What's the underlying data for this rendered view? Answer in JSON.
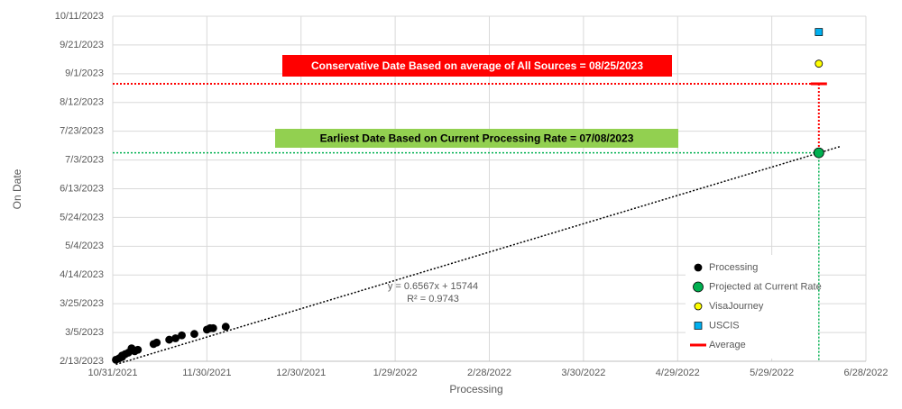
{
  "chart_data": {
    "type": "scatter",
    "x_label": "Processing",
    "y_label": "On Date",
    "xlim": [
      44500,
      44740
    ],
    "xticks": [
      {
        "value": 44500,
        "label": "10/31/2021"
      },
      {
        "value": 44530,
        "label": "11/30/2021"
      },
      {
        "value": 44560,
        "label": "12/30/2021"
      },
      {
        "value": 44590,
        "label": "1/29/2022"
      },
      {
        "value": 44620,
        "label": "2/28/2022"
      },
      {
        "value": 44650,
        "label": "3/30/2022"
      },
      {
        "value": 44680,
        "label": "4/29/2022"
      },
      {
        "value": 44710,
        "label": "5/29/2022"
      },
      {
        "value": 44740,
        "label": "6/28/2022"
      }
    ],
    "ylim": [
      44970,
      45210
    ],
    "yticks": [
      {
        "value": 44970,
        "label": "2/13/2023"
      },
      {
        "value": 44990,
        "label": "3/5/2023"
      },
      {
        "value": 45010,
        "label": "3/25/2023"
      },
      {
        "value": 45030,
        "label": "4/14/2023"
      },
      {
        "value": 45050,
        "label": "5/4/2023"
      },
      {
        "value": 45070,
        "label": "5/24/2023"
      },
      {
        "value": 45090,
        "label": "6/13/2023"
      },
      {
        "value": 45110,
        "label": "7/3/2023"
      },
      {
        "value": 45130,
        "label": "7/23/2023"
      },
      {
        "value": 45150,
        "label": "8/12/2023"
      },
      {
        "value": 45170,
        "label": "9/1/2023"
      },
      {
        "value": 45190,
        "label": "9/21/2023"
      },
      {
        "value": 45210,
        "label": "10/11/2023"
      }
    ],
    "grid": true,
    "series": [
      {
        "name": "Processing",
        "color": "#000000",
        "marker": "circle",
        "x": [
          44501,
          44502,
          44503,
          44503,
          44504,
          44505,
          44506,
          44507,
          44508,
          44513,
          44514,
          44518,
          44520,
          44522,
          44526,
          44530,
          44531,
          44532,
          44536
        ],
        "values": [
          44971,
          44972,
          44973,
          44974,
          44975,
          44976,
          44979,
          44977,
          44978,
          44982,
          44983,
          44985,
          44986,
          44988,
          44989,
          44992,
          44993,
          44993,
          44994
        ]
      },
      {
        "name": "Projected at Current Rate",
        "color": "#00b050",
        "marker": "big-circle",
        "x": [
          44725
        ],
        "values": [
          45115
        ]
      },
      {
        "name": "VisaJourney",
        "color": "#ffff00",
        "marker": "circle",
        "x": [
          44725
        ],
        "values": [
          45177
        ]
      },
      {
        "name": "USCIS",
        "color": "#00b0f0",
        "marker": "square",
        "x": [
          44725
        ],
        "values": [
          45199
        ]
      },
      {
        "name": "Average",
        "color": "#ff0000",
        "marker": "dash",
        "x": [
          44725
        ],
        "values": [
          45163
        ]
      }
    ],
    "trendline": {
      "slope": 0.6567,
      "intercept": 15744,
      "x": [
        44501,
        44732
      ],
      "equation": "y = 0.6567x + 15744",
      "r_squared": "R² = 0.9743"
    },
    "annotations": [
      {
        "text": "Conservative Date Based on average of All Sources  =  08/25/2023",
        "color": "#ff0000",
        "text_color": "#ffffff"
      },
      {
        "text": "Earliest Date Based on Current Processing Rate  =  07/08/2023",
        "color": "#92d050",
        "text_color": "#000000"
      }
    ]
  }
}
